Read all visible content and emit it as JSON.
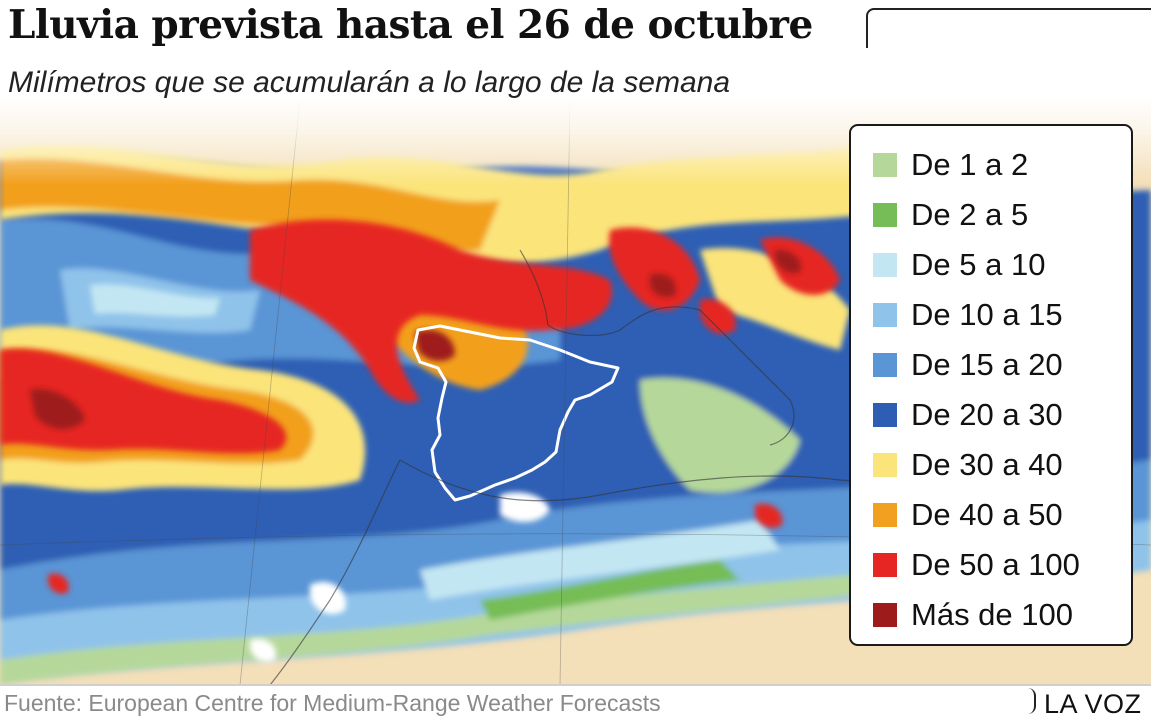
{
  "header": {
    "title": "Lluvia prevista hasta el 26 de octubre",
    "subtitle": "Milímetros que se acumularán a lo largo de la semana"
  },
  "legend": {
    "items": [
      {
        "label": "De 1 a 2",
        "color": "#b5d89a"
      },
      {
        "label": "De 2 a 5",
        "color": "#76bd57"
      },
      {
        "label": "De 5 a 10",
        "color": "#c3e6f3"
      },
      {
        "label": "De 10 a 15",
        "color": "#8fc3ea"
      },
      {
        "label": "De 15 a 20",
        "color": "#5a95d6"
      },
      {
        "label": "De 20 a 30",
        "color": "#2e5eb4"
      },
      {
        "label": "De 30 a 40",
        "color": "#fbe47a"
      },
      {
        "label": "De 40 a 50",
        "color": "#f2a01f"
      },
      {
        "label": "De 50 a 100",
        "color": "#e62622"
      },
      {
        "label": "Más de 100",
        "color": "#9e1b1b"
      }
    ]
  },
  "map": {
    "land_color": "#f3dfb8",
    "outline_color": "#ffffff"
  },
  "footer": {
    "source": "Fuente: European Centre for Medium-Range Weather Forecasts",
    "logo": "LA VOZ"
  }
}
